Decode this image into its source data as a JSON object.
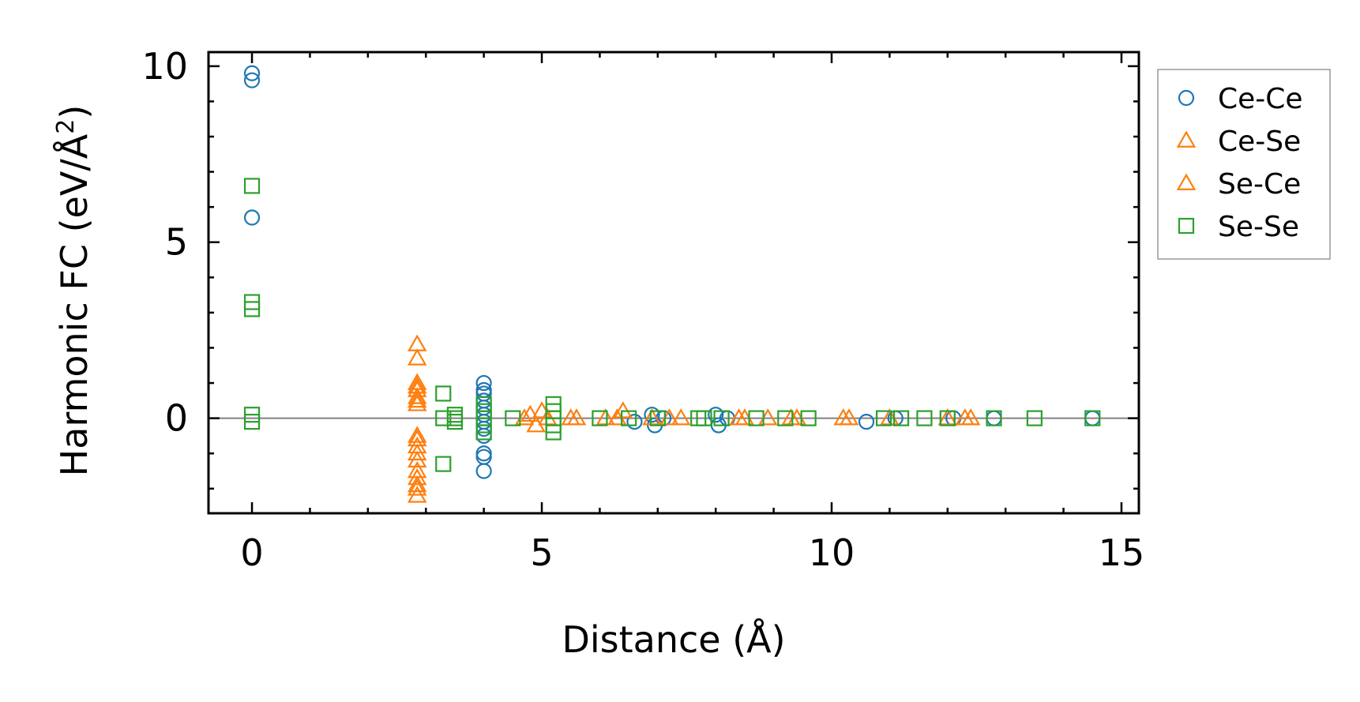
{
  "chart_data": {
    "type": "scatter",
    "title": "",
    "xlabel": "Distance (Å)",
    "ylabel_main": "Harmonic FC (eV/Å",
    "ylabel_sup": "2",
    "ylabel_close": ")",
    "xlim": [
      -0.75,
      15.3
    ],
    "ylim": [
      -2.7,
      10.4
    ],
    "xticks": [
      0,
      5,
      10,
      15
    ],
    "xtick_labels": [
      "0",
      "5",
      "10",
      "15"
    ],
    "yticks": [
      0,
      5,
      10
    ],
    "ytick_labels": [
      "0",
      "5",
      "10"
    ],
    "x_minor_step": 1,
    "y_minor_step": 1,
    "zero_line": true,
    "grid": false,
    "legend_position": "right, outside top",
    "series": [
      {
        "name": "Ce-Ce",
        "marker": "circle",
        "color": "#1f77b4",
        "points": [
          [
            0,
            9.8
          ],
          [
            0,
            9.6
          ],
          [
            0,
            5.7
          ],
          [
            4.0,
            1.0
          ],
          [
            4.0,
            0.8
          ],
          [
            4.0,
            0.7
          ],
          [
            4.0,
            0.5
          ],
          [
            4.0,
            0.3
          ],
          [
            4.0,
            0.1
          ],
          [
            4.0,
            -0.1
          ],
          [
            4.0,
            -0.3
          ],
          [
            4.0,
            -0.5
          ],
          [
            4.0,
            -1.0
          ],
          [
            4.0,
            -1.1
          ],
          [
            4.0,
            -1.5
          ],
          [
            6.6,
            -0.1
          ],
          [
            6.9,
            0.1
          ],
          [
            6.95,
            -0.2
          ],
          [
            7.1,
            0.0
          ],
          [
            8.0,
            0.1
          ],
          [
            8.05,
            -0.2
          ],
          [
            8.2,
            0.0
          ],
          [
            10.6,
            -0.1
          ],
          [
            11.1,
            0.0
          ],
          [
            12.1,
            0.0
          ],
          [
            12.8,
            0.0
          ],
          [
            14.5,
            0.0
          ]
        ]
      },
      {
        "name": "Ce-Se",
        "marker": "triangle",
        "color": "#ff7f0e",
        "points": [
          [
            2.85,
            2.1
          ],
          [
            2.85,
            1.7
          ],
          [
            2.85,
            1.0
          ],
          [
            2.85,
            0.8
          ],
          [
            2.85,
            0.6
          ],
          [
            2.85,
            0.5
          ],
          [
            2.85,
            -0.6
          ],
          [
            2.85,
            -0.8
          ],
          [
            2.85,
            -1.0
          ],
          [
            2.85,
            -1.5
          ],
          [
            2.85,
            -1.7
          ],
          [
            2.85,
            -2.0
          ],
          [
            2.85,
            -2.2
          ],
          [
            4.8,
            0.1
          ],
          [
            4.9,
            -0.2
          ],
          [
            5.0,
            0.2
          ],
          [
            5.5,
            0.0
          ],
          [
            6.1,
            0.0
          ],
          [
            6.4,
            0.2
          ],
          [
            6.9,
            0.0
          ],
          [
            7.4,
            0.0
          ],
          [
            8.4,
            0.0
          ],
          [
            8.9,
            0.0
          ],
          [
            9.3,
            0.0
          ],
          [
            10.2,
            0.0
          ],
          [
            11.0,
            0.0
          ],
          [
            12.0,
            0.0
          ],
          [
            12.3,
            0.0
          ]
        ]
      },
      {
        "name": "Se-Ce",
        "marker": "triangle",
        "color": "#ff7f0e",
        "points": [
          [
            2.85,
            0.9
          ],
          [
            2.85,
            0.4
          ],
          [
            2.85,
            -0.5
          ],
          [
            2.85,
            -1.2
          ],
          [
            2.85,
            -1.9
          ],
          [
            4.7,
            0.0
          ],
          [
            5.1,
            0.0
          ],
          [
            5.6,
            0.0
          ],
          [
            6.3,
            0.0
          ],
          [
            7.2,
            0.0
          ],
          [
            8.5,
            0.0
          ],
          [
            9.4,
            0.0
          ],
          [
            10.3,
            0.0
          ],
          [
            12.4,
            0.0
          ]
        ]
      },
      {
        "name": "Se-Se",
        "marker": "square",
        "color": "#2ca02c",
        "points": [
          [
            0,
            6.6
          ],
          [
            0,
            3.3
          ],
          [
            0,
            3.1
          ],
          [
            0,
            0.1
          ],
          [
            0,
            -0.1
          ],
          [
            3.3,
            0.7
          ],
          [
            3.3,
            0.0
          ],
          [
            3.3,
            -1.3
          ],
          [
            3.5,
            0.1
          ],
          [
            3.5,
            -0.1
          ],
          [
            3.5,
            0.0
          ],
          [
            4.0,
            0.4
          ],
          [
            4.0,
            0.2
          ],
          [
            4.0,
            0.0
          ],
          [
            4.0,
            -0.2
          ],
          [
            4.0,
            -0.4
          ],
          [
            4.5,
            0.0
          ],
          [
            5.2,
            0.4
          ],
          [
            5.2,
            0.2
          ],
          [
            5.2,
            0.0
          ],
          [
            5.2,
            -0.2
          ],
          [
            5.2,
            -0.4
          ],
          [
            6.0,
            0.0
          ],
          [
            6.5,
            0.0
          ],
          [
            7.0,
            0.0
          ],
          [
            7.7,
            0.0
          ],
          [
            7.8,
            0.0
          ],
          [
            8.1,
            0.0
          ],
          [
            8.7,
            0.0
          ],
          [
            9.2,
            0.0
          ],
          [
            9.6,
            0.0
          ],
          [
            10.9,
            0.0
          ],
          [
            11.2,
            0.0
          ],
          [
            11.6,
            0.0
          ],
          [
            12.0,
            0.0
          ],
          [
            12.8,
            0.0
          ],
          [
            13.5,
            0.0
          ],
          [
            14.5,
            0.0
          ]
        ]
      }
    ]
  }
}
